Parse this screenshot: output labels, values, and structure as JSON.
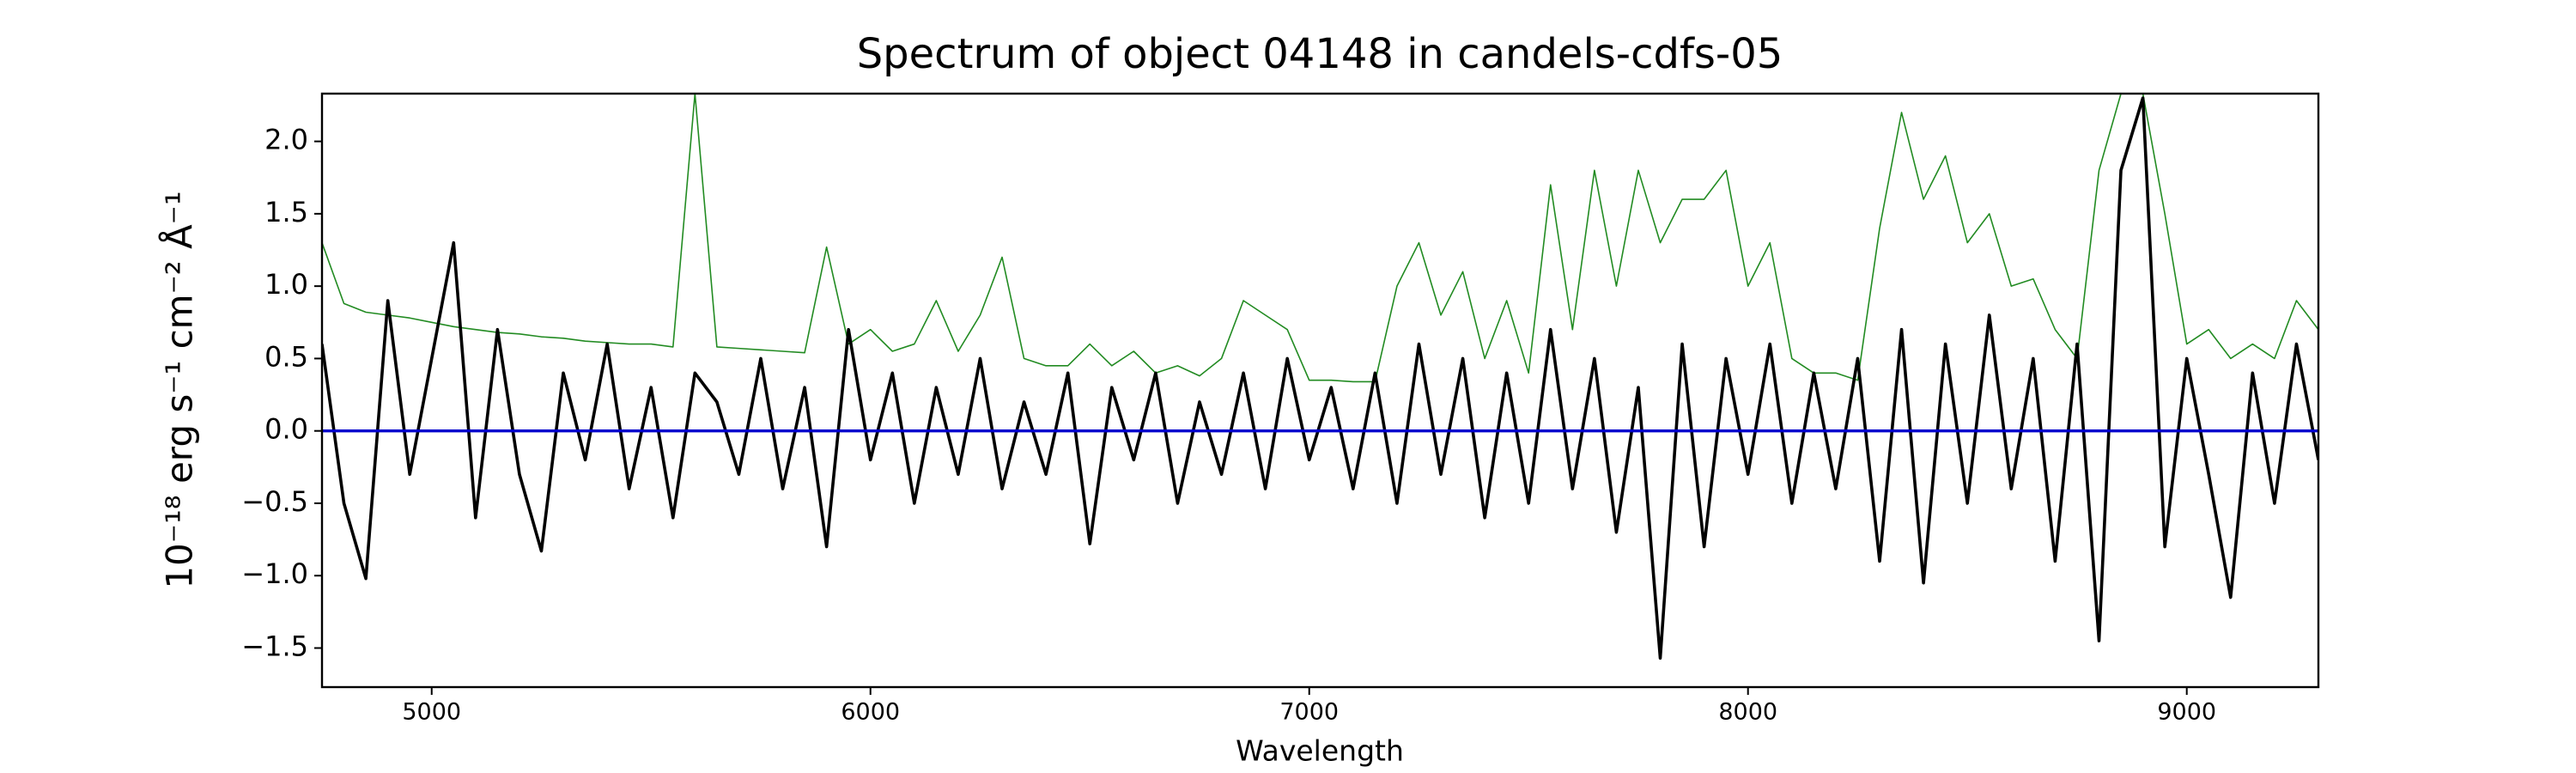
{
  "chart_data": {
    "type": "line",
    "title": "Spectrum of object 04148 in candels-cdfs-05",
    "xlabel": "Wavelength",
    "ylabel": "10⁻¹⁸ erg s⁻¹ cm⁻² Å⁻¹",
    "xlim": [
      4750,
      9300
    ],
    "ylim": [
      -1.77,
      2.33
    ],
    "xticks": [
      5000,
      6000,
      7000,
      8000,
      9000
    ],
    "yticks": [
      {
        "value": -1.5,
        "label": "−1.5"
      },
      {
        "value": -1.0,
        "label": "−1.0"
      },
      {
        "value": -0.5,
        "label": "−0.5"
      },
      {
        "value": 0.0,
        "label": "0.0"
      },
      0.5,
      {
        "value": 1.0,
        "label": "1.0"
      },
      1.5,
      {
        "value": 2.0,
        "label": "2.0"
      }
    ],
    "grid": false,
    "series": [
      {
        "color": "#228b22",
        "width": 1.6,
        "x": [
          4750,
          4800,
          4850,
          4900,
          4950,
          5000,
          5050,
          5100,
          5150,
          5200,
          5250,
          5300,
          5350,
          5400,
          5450,
          5500,
          5550,
          5600,
          5650,
          5700,
          5750,
          5800,
          5850,
          5900,
          5950,
          6000,
          6050,
          6100,
          6150,
          6200,
          6250,
          6300,
          6350,
          6400,
          6450,
          6500,
          6550,
          6600,
          6650,
          6700,
          6750,
          6800,
          6850,
          6900,
          6950,
          7000,
          7050,
          7100,
          7150,
          7200,
          7250,
          7300,
          7350,
          7400,
          7450,
          7500,
          7550,
          7600,
          7650,
          7700,
          7750,
          7800,
          7850,
          7900,
          7950,
          8000,
          8050,
          8100,
          8150,
          8200,
          8250,
          8300,
          8350,
          8400,
          8450,
          8500,
          8550,
          8600,
          8650,
          8700,
          8750,
          8800,
          8850,
          8900,
          8950,
          9000,
          9050,
          9100,
          9150,
          9200,
          9250,
          9300
        ],
        "values": [
          1.3,
          0.88,
          0.82,
          0.8,
          0.78,
          0.75,
          0.72,
          0.7,
          0.68,
          0.67,
          0.65,
          0.64,
          0.62,
          0.61,
          0.6,
          0.6,
          0.58,
          2.33,
          0.58,
          0.57,
          0.56,
          0.55,
          0.54,
          1.27,
          0.6,
          0.7,
          0.55,
          0.6,
          0.9,
          0.55,
          0.8,
          1.2,
          0.5,
          0.45,
          0.45,
          0.6,
          0.45,
          0.55,
          0.4,
          0.45,
          0.38,
          0.5,
          0.9,
          0.8,
          0.7,
          0.35,
          0.35,
          0.34,
          0.34,
          1.0,
          1.3,
          0.8,
          1.1,
          0.5,
          0.9,
          0.4,
          1.7,
          0.7,
          1.8,
          1.0,
          1.8,
          1.3,
          1.6,
          1.6,
          1.8,
          1.0,
          1.3,
          0.5,
          0.4,
          0.4,
          0.35,
          1.4,
          2.2,
          1.6,
          1.9,
          1.3,
          1.5,
          1.0,
          1.05,
          0.7,
          0.5,
          1.8,
          2.33,
          2.33,
          1.5,
          0.6,
          0.7,
          0.5,
          0.6,
          0.5,
          0.9,
          0.7
        ]
      },
      {
        "color": "#000000",
        "width": 3.6,
        "x": [
          4750,
          4800,
          4850,
          4900,
          4950,
          5000,
          5050,
          5100,
          5150,
          5200,
          5250,
          5300,
          5350,
          5400,
          5450,
          5500,
          5550,
          5600,
          5650,
          5700,
          5750,
          5800,
          5850,
          5900,
          5950,
          6000,
          6050,
          6100,
          6150,
          6200,
          6250,
          6300,
          6350,
          6400,
          6450,
          6500,
          6550,
          6600,
          6650,
          6700,
          6750,
          6800,
          6850,
          6900,
          6950,
          7000,
          7050,
          7100,
          7150,
          7200,
          7250,
          7300,
          7350,
          7400,
          7450,
          7500,
          7550,
          7600,
          7650,
          7700,
          7750,
          7800,
          7850,
          7900,
          7950,
          8000,
          8050,
          8100,
          8150,
          8200,
          8250,
          8300,
          8350,
          8400,
          8450,
          8500,
          8550,
          8600,
          8650,
          8700,
          8750,
          8800,
          8850,
          8900,
          8950,
          9000,
          9050,
          9100,
          9150,
          9200,
          9250,
          9300
        ],
        "values": [
          0.6,
          -0.5,
          -1.02,
          0.9,
          -0.3,
          0.5,
          1.3,
          -0.6,
          0.7,
          -0.3,
          -0.83,
          0.4,
          -0.2,
          0.6,
          -0.4,
          0.3,
          -0.6,
          0.4,
          0.2,
          -0.3,
          0.5,
          -0.4,
          0.3,
          -0.8,
          0.7,
          -0.2,
          0.4,
          -0.5,
          0.3,
          -0.3,
          0.5,
          -0.4,
          0.2,
          -0.3,
          0.4,
          -0.78,
          0.3,
          -0.2,
          0.4,
          -0.5,
          0.2,
          -0.3,
          0.4,
          -0.4,
          0.5,
          -0.2,
          0.3,
          -0.4,
          0.4,
          -0.5,
          0.6,
          -0.3,
          0.5,
          -0.6,
          0.4,
          -0.5,
          0.7,
          -0.4,
          0.5,
          -0.7,
          0.3,
          -1.57,
          0.6,
          -0.8,
          0.5,
          -0.3,
          0.6,
          -0.5,
          0.4,
          -0.4,
          0.5,
          -0.9,
          0.7,
          -1.05,
          0.6,
          -0.5,
          0.8,
          -0.4,
          0.5,
          -0.9,
          0.6,
          -1.45,
          1.8,
          2.3,
          -0.8,
          0.5,
          -0.3,
          -1.15,
          0.4,
          -0.5,
          0.6,
          -0.2
        ]
      },
      {
        "color": "#0000cd",
        "width": 3.4,
        "x": [
          4750,
          9300
        ],
        "values": [
          0,
          0
        ]
      }
    ]
  }
}
